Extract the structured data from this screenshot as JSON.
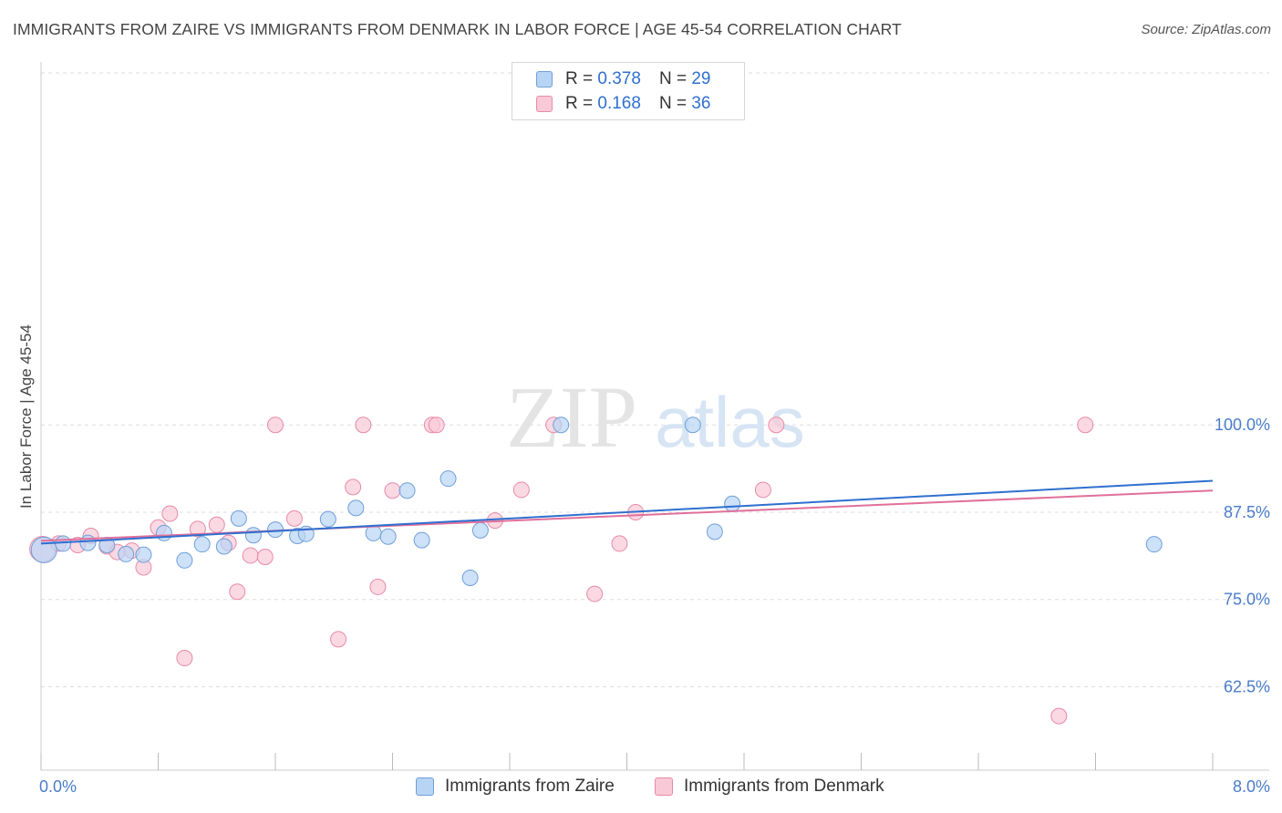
{
  "header": {
    "title": "IMMIGRANTS FROM ZAIRE VS IMMIGRANTS FROM DENMARK IN LABOR FORCE | AGE 45-54 CORRELATION CHART",
    "source": "Source: ZipAtlas.com"
  },
  "watermark": {
    "zip": "ZIP",
    "atlas": "atlas"
  },
  "legend": {
    "zaire": {
      "r_label": "R =",
      "r_value": "0.378",
      "n_label": "N =",
      "n_value": "29"
    },
    "denmark": {
      "r_label": "R =",
      "r_value": "0.168",
      "n_label": "N =",
      "n_value": "36"
    }
  },
  "colors": {
    "zaire_fill": "#b8d4f5",
    "zaire_stroke": "#6f9fd8",
    "zaire_line": "#2f6fcf",
    "denmark_fill": "#f9c9d7",
    "denmark_stroke": "#e88aa8",
    "denmark_line": "#e0709a",
    "grid": "#dddddd",
    "tick_text": "#4a7cc9"
  },
  "chart_data": {
    "type": "scatter",
    "title": "IMMIGRANTS FROM ZAIRE VS IMMIGRANTS FROM DENMARK IN LABOR FORCE | AGE 45-54 CORRELATION CHART",
    "xlabel": "",
    "ylabel": "In Labor Force | Age 45-54",
    "xlim": [
      0.0,
      8.0
    ],
    "ylim": [
      50.0,
      101.5
    ],
    "x_tick_labels": [
      "0.0%",
      "8.0%"
    ],
    "y_ticks": [
      62.5,
      75.0,
      87.5,
      100.0
    ],
    "y_tick_labels": [
      "62.5%",
      "75.0%",
      "87.5%",
      "100.0%"
    ],
    "grid": true,
    "legend_position": "bottom",
    "series": [
      {
        "name": "Immigrants from Zaire",
        "points": [
          [
            0.02,
            82.1
          ],
          [
            0.15,
            83.0
          ],
          [
            0.32,
            83.1
          ],
          [
            0.45,
            82.8
          ],
          [
            0.58,
            81.5
          ],
          [
            0.7,
            81.4
          ],
          [
            0.84,
            84.5
          ],
          [
            0.98,
            80.6
          ],
          [
            1.1,
            82.9
          ],
          [
            1.25,
            82.6
          ],
          [
            1.35,
            86.6
          ],
          [
            1.45,
            84.2
          ],
          [
            1.6,
            85.0
          ],
          [
            1.75,
            84.1
          ],
          [
            1.81,
            84.4
          ],
          [
            1.96,
            86.5
          ],
          [
            2.15,
            88.1
          ],
          [
            2.27,
            84.5
          ],
          [
            2.37,
            84.0
          ],
          [
            2.5,
            90.6
          ],
          [
            2.6,
            83.5
          ],
          [
            2.78,
            92.3
          ],
          [
            2.93,
            78.1
          ],
          [
            3.0,
            84.9
          ],
          [
            3.55,
            100.0
          ],
          [
            4.45,
            100.0
          ],
          [
            4.6,
            84.7
          ],
          [
            4.72,
            88.7
          ],
          [
            7.6,
            82.9
          ]
        ],
        "trend": {
          "x": [
            0.0,
            8.0
          ],
          "y": [
            83.0,
            92.0
          ]
        }
      },
      {
        "name": "Immigrants from Denmark",
        "points": [
          [
            0.01,
            82.2
          ],
          [
            0.12,
            83.0
          ],
          [
            0.25,
            82.8
          ],
          [
            0.34,
            84.1
          ],
          [
            0.45,
            82.6
          ],
          [
            0.52,
            81.8
          ],
          [
            0.62,
            82.0
          ],
          [
            0.7,
            79.6
          ],
          [
            0.8,
            85.3
          ],
          [
            0.88,
            87.3
          ],
          [
            0.98,
            66.6
          ],
          [
            1.07,
            85.1
          ],
          [
            1.2,
            85.7
          ],
          [
            1.28,
            83.1
          ],
          [
            1.34,
            76.1
          ],
          [
            1.43,
            81.3
          ],
          [
            1.53,
            81.1
          ],
          [
            1.6,
            100.0
          ],
          [
            1.73,
            86.6
          ],
          [
            2.03,
            69.3
          ],
          [
            2.13,
            91.1
          ],
          [
            2.2,
            100.0
          ],
          [
            2.3,
            76.8
          ],
          [
            2.4,
            90.6
          ],
          [
            2.67,
            100.0
          ],
          [
            2.7,
            100.0
          ],
          [
            3.1,
            86.3
          ],
          [
            3.28,
            90.7
          ],
          [
            3.5,
            100.0
          ],
          [
            3.78,
            75.8
          ],
          [
            3.95,
            83.0
          ],
          [
            4.06,
            87.5
          ],
          [
            4.93,
            90.7
          ],
          [
            5.02,
            100.0
          ],
          [
            7.13,
            100.0
          ],
          [
            6.95,
            58.3
          ]
        ],
        "trend": {
          "x": [
            0.0,
            8.0
          ],
          "y": [
            83.4,
            90.6
          ]
        }
      }
    ]
  }
}
